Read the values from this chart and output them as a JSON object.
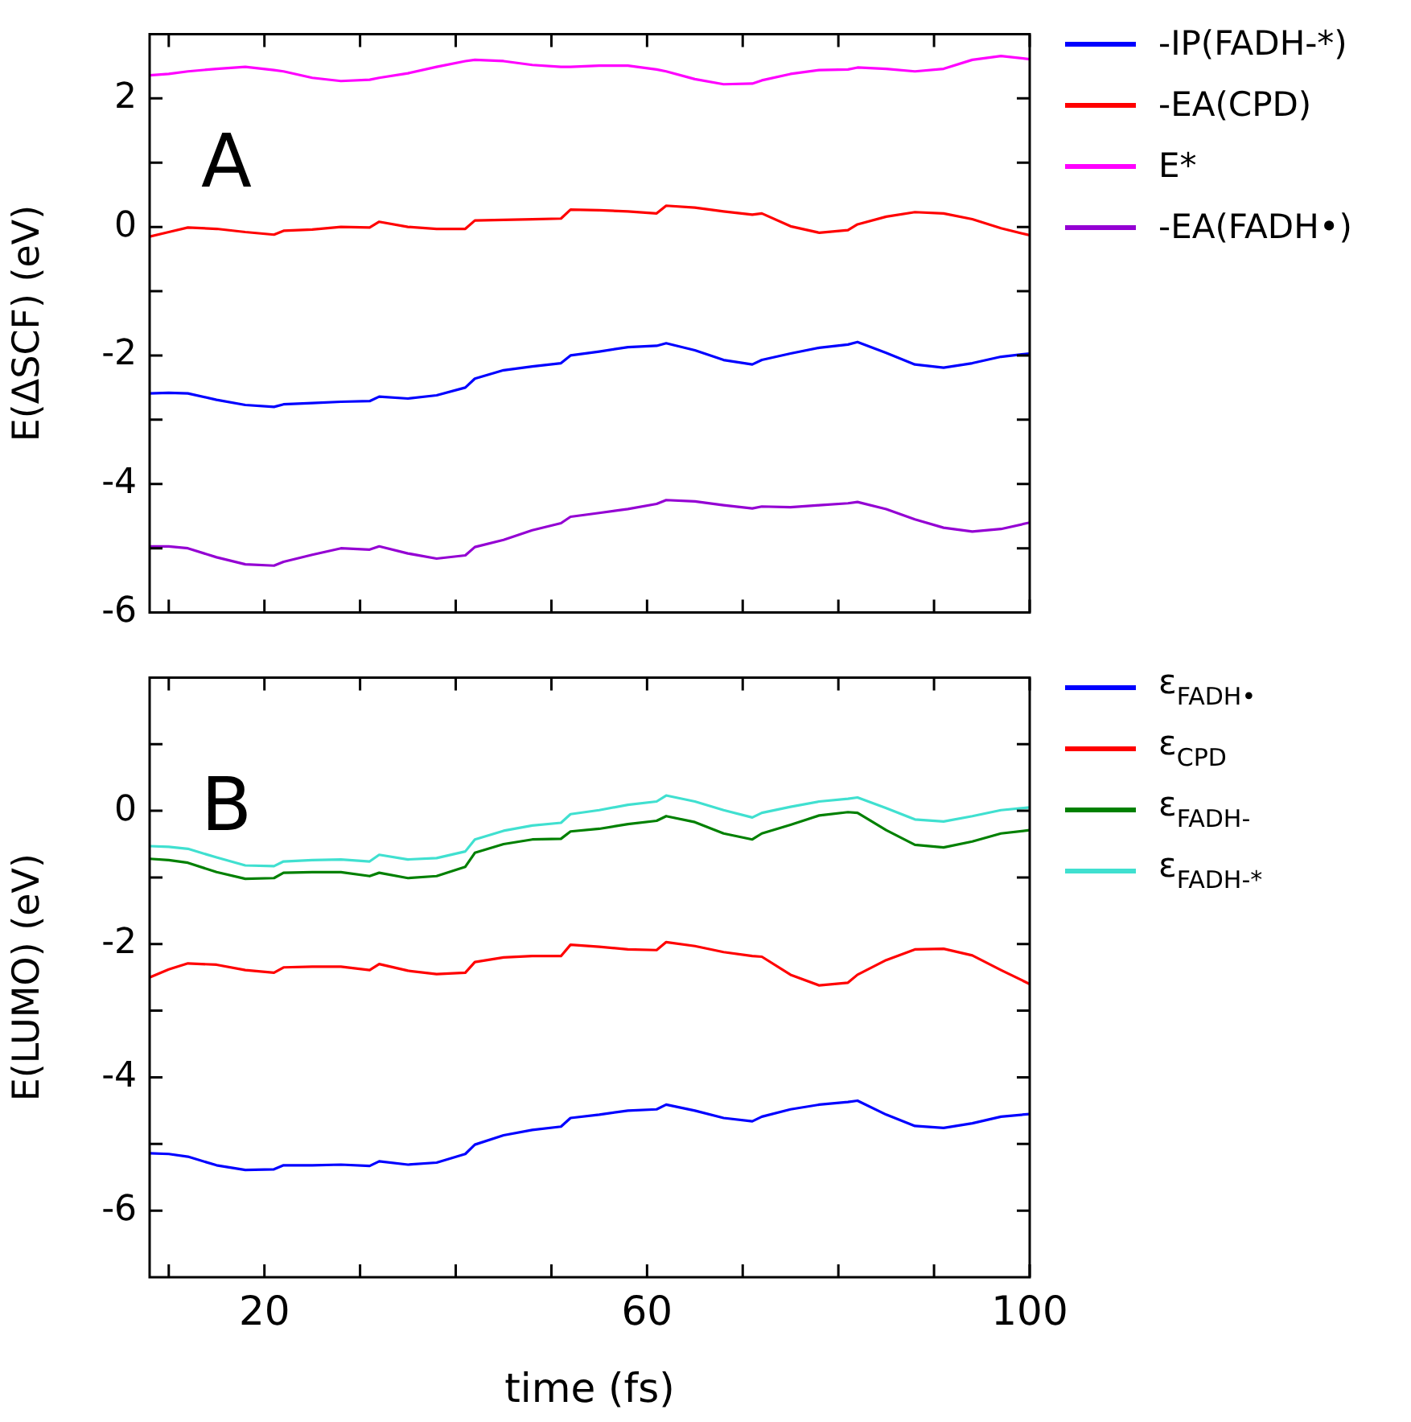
{
  "chart_data": [
    {
      "type": "line",
      "ylabel": "E(ΔSCF) (eV)",
      "annotations": [
        "A"
      ],
      "legend": "right",
      "tick_labels": "y",
      "x": [
        8,
        10,
        12,
        15,
        18,
        21,
        22,
        25,
        28,
        31,
        32,
        35,
        38,
        41,
        42,
        45,
        48,
        51,
        52,
        55,
        58,
        61,
        62,
        65,
        68,
        71,
        72,
        75,
        78,
        81,
        82,
        85,
        88,
        91,
        94,
        97,
        100
      ],
      "xlim": [
        8,
        100
      ],
      "xticks": [
        {
          "value": 10,
          "label": null
        },
        20,
        {
          "value": 30,
          "label": null
        },
        {
          "value": 40,
          "label": null
        },
        {
          "value": 50,
          "label": null
        },
        60,
        {
          "value": 70,
          "label": null
        },
        {
          "value": 80,
          "label": null
        },
        {
          "value": 90,
          "label": null
        },
        100
      ],
      "ylim": [
        -6,
        3
      ],
      "yticks": [
        -6,
        {
          "value": -5,
          "label": null
        },
        -4,
        {
          "value": -3,
          "label": null
        },
        -2,
        {
          "value": -1,
          "label": null
        },
        0,
        {
          "value": 1,
          "label": null
        },
        2
      ],
      "series": [
        {
          "name": " -IP(FADH-*)",
          "color": "#0000ff",
          "values": [
            -2.59,
            -2.58,
            -2.59,
            -2.69,
            -2.77,
            -2.8,
            -2.76,
            -2.74,
            -2.72,
            -2.71,
            -2.64,
            -2.67,
            -2.62,
            -2.5,
            -2.36,
            -2.23,
            -2.17,
            -2.12,
            -2.0,
            -1.94,
            -1.87,
            -1.85,
            -1.81,
            -1.92,
            -2.07,
            -2.14,
            -2.07,
            -1.97,
            -1.88,
            -1.83,
            -1.79,
            -1.96,
            -2.14,
            -2.19,
            -2.12,
            -2.02,
            -1.97
          ]
        },
        {
          "name": "-EA(CPD)",
          "color": "#ff0000",
          "values": [
            -0.15,
            -0.08,
            -0.01,
            -0.03,
            -0.08,
            -0.12,
            -0.06,
            -0.04,
            0.0,
            -0.01,
            0.08,
            0.0,
            -0.03,
            -0.03,
            0.1,
            0.11,
            0.12,
            0.13,
            0.27,
            0.26,
            0.24,
            0.21,
            0.33,
            0.3,
            0.24,
            0.19,
            0.21,
            0.01,
            -0.09,
            -0.05,
            0.04,
            0.16,
            0.23,
            0.21,
            0.12,
            -0.02,
            -0.13
          ]
        },
        {
          "name": " E*",
          "color": "#ff00ff",
          "values": [
            2.36,
            2.38,
            2.42,
            2.46,
            2.49,
            2.44,
            2.42,
            2.32,
            2.27,
            2.29,
            2.32,
            2.39,
            2.49,
            2.58,
            2.6,
            2.58,
            2.52,
            2.49,
            2.49,
            2.51,
            2.51,
            2.45,
            2.42,
            2.3,
            2.22,
            2.23,
            2.28,
            2.38,
            2.44,
            2.45,
            2.48,
            2.46,
            2.42,
            2.46,
            2.6,
            2.66,
            2.61
          ]
        },
        {
          "name": "-EA(FADH•)",
          "color": "#9400d3",
          "values": [
            -4.97,
            -4.97,
            -5.0,
            -5.14,
            -5.25,
            -5.27,
            -5.21,
            -5.1,
            -5.0,
            -5.02,
            -4.97,
            -5.08,
            -5.16,
            -5.11,
            -4.98,
            -4.87,
            -4.72,
            -4.61,
            -4.51,
            -4.45,
            -4.39,
            -4.31,
            -4.25,
            -4.27,
            -4.33,
            -4.38,
            -4.35,
            -4.36,
            -4.33,
            -4.3,
            -4.28,
            -4.39,
            -4.55,
            -4.68,
            -4.74,
            -4.7,
            -4.6
          ]
        }
      ]
    },
    {
      "type": "line",
      "xlabel": "time (fs)",
      "ylabel": "E(LUMO) (eV)",
      "annotations": [
        "B"
      ],
      "legend": "right",
      "x": [
        8,
        10,
        12,
        15,
        18,
        21,
        22,
        25,
        28,
        31,
        32,
        35,
        38,
        41,
        42,
        45,
        48,
        51,
        52,
        55,
        58,
        61,
        62,
        65,
        68,
        71,
        72,
        75,
        78,
        81,
        82,
        85,
        88,
        91,
        94,
        97,
        100
      ],
      "xlim": [
        8,
        100
      ],
      "xticks": [
        {
          "value": 10,
          "label": null
        },
        20,
        {
          "value": 30,
          "label": null
        },
        {
          "value": 40,
          "label": null
        },
        {
          "value": 50,
          "label": null
        },
        60,
        {
          "value": 70,
          "label": null
        },
        {
          "value": 80,
          "label": null
        },
        {
          "value": 90,
          "label": null
        },
        100
      ],
      "ylim": [
        -7,
        2
      ],
      "yticks": [
        -6,
        {
          "value": -5,
          "label": null
        },
        -4,
        {
          "value": -3,
          "label": null
        },
        -2,
        {
          "value": -1,
          "label": null
        },
        0,
        {
          "value": 1,
          "label": null
        }
      ],
      "series": [
        {
          "name": "ε$_{FADH•}$",
          "color": "#0000ff",
          "values": [
            -5.14,
            -5.15,
            -5.19,
            -5.32,
            -5.39,
            -5.38,
            -5.32,
            -5.32,
            -5.31,
            -5.33,
            -5.26,
            -5.31,
            -5.28,
            -5.15,
            -5.01,
            -4.87,
            -4.79,
            -4.74,
            -4.61,
            -4.56,
            -4.5,
            -4.48,
            -4.41,
            -4.5,
            -4.61,
            -4.66,
            -4.59,
            -4.48,
            -4.41,
            -4.37,
            -4.35,
            -4.56,
            -4.73,
            -4.76,
            -4.69,
            -4.59,
            -4.55
          ]
        },
        {
          "name": "ε$_{CPD}$",
          "color": "#ff0000",
          "values": [
            -2.5,
            -2.38,
            -2.29,
            -2.31,
            -2.39,
            -2.43,
            -2.35,
            -2.34,
            -2.34,
            -2.39,
            -2.3,
            -2.4,
            -2.45,
            -2.43,
            -2.27,
            -2.2,
            -2.18,
            -2.18,
            -2.01,
            -2.04,
            -2.08,
            -2.09,
            -1.97,
            -2.03,
            -2.12,
            -2.18,
            -2.19,
            -2.46,
            -2.62,
            -2.58,
            -2.46,
            -2.24,
            -2.08,
            -2.07,
            -2.17,
            -2.39,
            -2.6
          ]
        },
        {
          "name": "ε$_{FADH-}$",
          "color": "#008000",
          "values": [
            -0.72,
            -0.74,
            -0.78,
            -0.92,
            -1.02,
            -1.01,
            -0.93,
            -0.92,
            -0.92,
            -0.98,
            -0.93,
            -1.01,
            -0.98,
            -0.84,
            -0.63,
            -0.5,
            -0.43,
            -0.42,
            -0.31,
            -0.27,
            -0.2,
            -0.15,
            -0.08,
            -0.17,
            -0.34,
            -0.43,
            -0.34,
            -0.21,
            -0.07,
            -0.02,
            -0.03,
            -0.29,
            -0.51,
            -0.55,
            -0.46,
            -0.34,
            -0.29
          ]
        },
        {
          "name": "ε$_{FADH-*}$",
          "color": "#40e0d0",
          "values": [
            -0.53,
            -0.54,
            -0.57,
            -0.7,
            -0.82,
            -0.83,
            -0.76,
            -0.74,
            -0.73,
            -0.76,
            -0.66,
            -0.73,
            -0.71,
            -0.61,
            -0.43,
            -0.3,
            -0.22,
            -0.18,
            -0.05,
            0.01,
            0.09,
            0.14,
            0.23,
            0.14,
            0.01,
            -0.1,
            -0.03,
            0.06,
            0.14,
            0.18,
            0.2,
            0.04,
            -0.13,
            -0.16,
            -0.08,
            0.01,
            0.05
          ]
        }
      ]
    }
  ]
}
